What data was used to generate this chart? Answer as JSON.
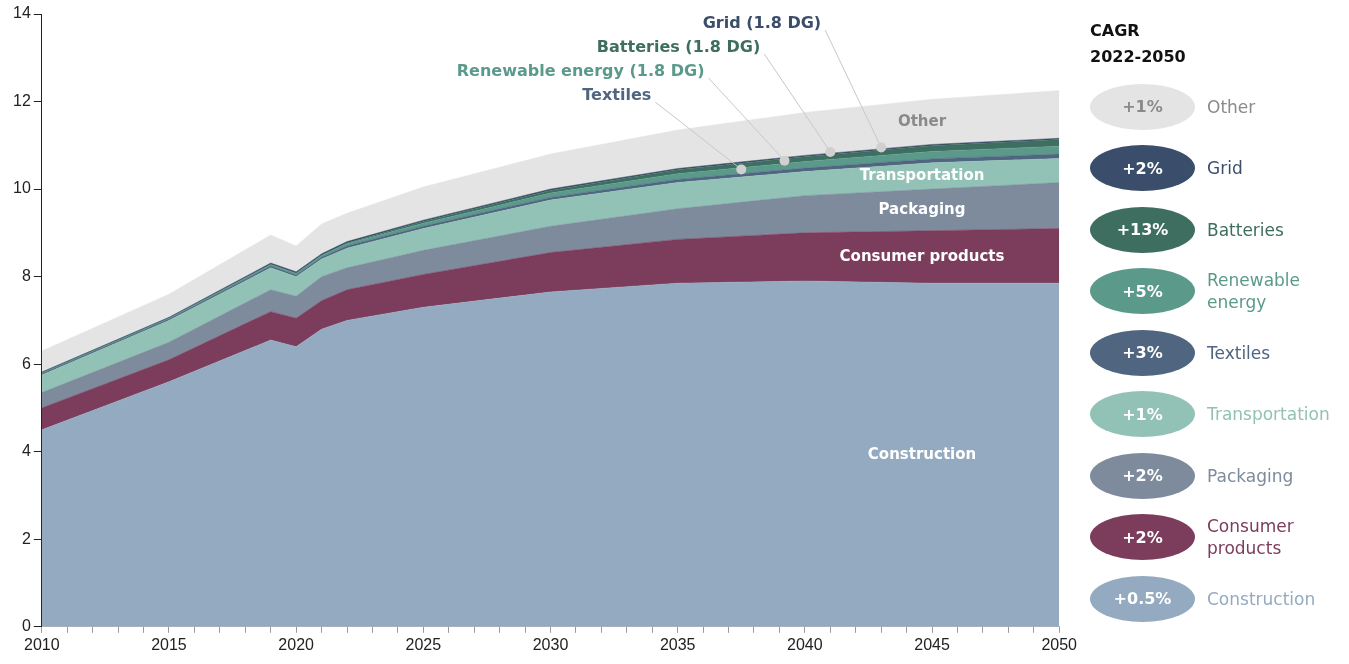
{
  "chart_data": {
    "type": "area",
    "stacked": true,
    "legend": "right",
    "legend_title": "CAGR\n2022-2050",
    "grid": false,
    "x": [
      2010,
      2015,
      2019,
      2020,
      2021,
      2022,
      2025,
      2030,
      2035,
      2040,
      2045,
      2050
    ],
    "xlim": [
      2010,
      2050
    ],
    "xticks": [
      2010,
      {
        "value": 2011,
        "label": null
      },
      {
        "value": 2012,
        "label": null
      },
      {
        "value": 2013,
        "label": null
      },
      {
        "value": 2014,
        "label": null
      },
      2015,
      {
        "value": 2016,
        "label": null
      },
      {
        "value": 2017,
        "label": null
      },
      {
        "value": 2018,
        "label": null
      },
      {
        "value": 2019,
        "label": null
      },
      2020,
      {
        "value": 2021,
        "label": null
      },
      {
        "value": 2022,
        "label": null
      },
      {
        "value": 2023,
        "label": null
      },
      {
        "value": 2024,
        "label": null
      },
      2025,
      {
        "value": 2026,
        "label": null
      },
      {
        "value": 2027,
        "label": null
      },
      {
        "value": 2028,
        "label": null
      },
      {
        "value": 2029,
        "label": null
      },
      2030,
      {
        "value": 2031,
        "label": null
      },
      {
        "value": 2032,
        "label": null
      },
      {
        "value": 2033,
        "label": null
      },
      {
        "value": 2034,
        "label": null
      },
      2035,
      {
        "value": 2036,
        "label": null
      },
      {
        "value": 2037,
        "label": null
      },
      {
        "value": 2038,
        "label": null
      },
      {
        "value": 2039,
        "label": null
      },
      2040,
      {
        "value": 2041,
        "label": null
      },
      {
        "value": 2042,
        "label": null
      },
      {
        "value": 2043,
        "label": null
      },
      {
        "value": 2044,
        "label": null
      },
      2045,
      {
        "value": 2046,
        "label": null
      },
      {
        "value": 2047,
        "label": null
      },
      {
        "value": 2048,
        "label": null
      },
      {
        "value": 2049,
        "label": null
      },
      2050
    ],
    "ylim": [
      0,
      14
    ],
    "yticks": [
      0,
      2,
      4,
      6,
      8,
      10,
      12,
      14
    ],
    "series": [
      {
        "name": "Construction",
        "color": "#94aac0",
        "values": [
          4.5,
          5.6,
          6.55,
          6.4,
          6.8,
          7.0,
          7.3,
          7.65,
          7.85,
          7.9,
          7.85,
          7.85
        ]
      },
      {
        "name": "Consumer products",
        "color": "#7c3c5c",
        "values": [
          0.5,
          0.5,
          0.65,
          0.65,
          0.65,
          0.7,
          0.75,
          0.9,
          1.0,
          1.1,
          1.2,
          1.25
        ]
      },
      {
        "name": "Packaging",
        "color": "#7d8b9c",
        "values": [
          0.35,
          0.4,
          0.5,
          0.5,
          0.55,
          0.5,
          0.55,
          0.6,
          0.7,
          0.85,
          0.95,
          1.05
        ]
      },
      {
        "name": "Transportation",
        "color": "#91c2b5",
        "values": [
          0.4,
          0.5,
          0.5,
          0.45,
          0.4,
          0.45,
          0.5,
          0.6,
          0.6,
          0.55,
          0.6,
          0.55
        ]
      },
      {
        "name": "Textiles",
        "color": "#4f6580",
        "values": [
          0.03,
          0.03,
          0.04,
          0.04,
          0.04,
          0.05,
          0.05,
          0.06,
          0.07,
          0.08,
          0.09,
          0.1
        ]
      },
      {
        "name": "Renewable energy",
        "color": "#5b9a8b",
        "values": [
          0.02,
          0.02,
          0.03,
          0.03,
          0.04,
          0.05,
          0.07,
          0.1,
          0.13,
          0.15,
          0.17,
          0.18
        ]
      },
      {
        "name": "Batteries",
        "color": "#3e6e60",
        "values": [
          0,
          0,
          0.01,
          0.01,
          0.01,
          0.02,
          0.04,
          0.06,
          0.09,
          0.11,
          0.13,
          0.15
        ]
      },
      {
        "name": "Grid",
        "color": "#3a4d6a",
        "values": [
          0.02,
          0.02,
          0.03,
          0.03,
          0.03,
          0.03,
          0.03,
          0.03,
          0.03,
          0.03,
          0.03,
          0.03
        ]
      },
      {
        "name": "Other",
        "color": "#e4e4e4",
        "values": [
          0.48,
          0.53,
          0.64,
          0.59,
          0.68,
          0.65,
          0.76,
          0.8,
          0.88,
          0.98,
          1.03,
          1.09
        ]
      }
    ],
    "annotations": [
      {
        "text": "Textiles",
        "x": 2037.5,
        "y": 10.45
      },
      {
        "text": "Renewable energy (1.8 DG)",
        "x": 2039.2,
        "y": 10.65
      },
      {
        "text": "Batteries (1.8 DG)",
        "x": 2041,
        "y": 10.85
      },
      {
        "text": "Grid (1.8 DG)",
        "x": 2043,
        "y": 10.95
      },
      "+1%",
      "+2%",
      "+13%",
      "+5%",
      "+3%",
      "+1%",
      "+2%",
      "+2%",
      "+0.5%"
    ]
  }
}
